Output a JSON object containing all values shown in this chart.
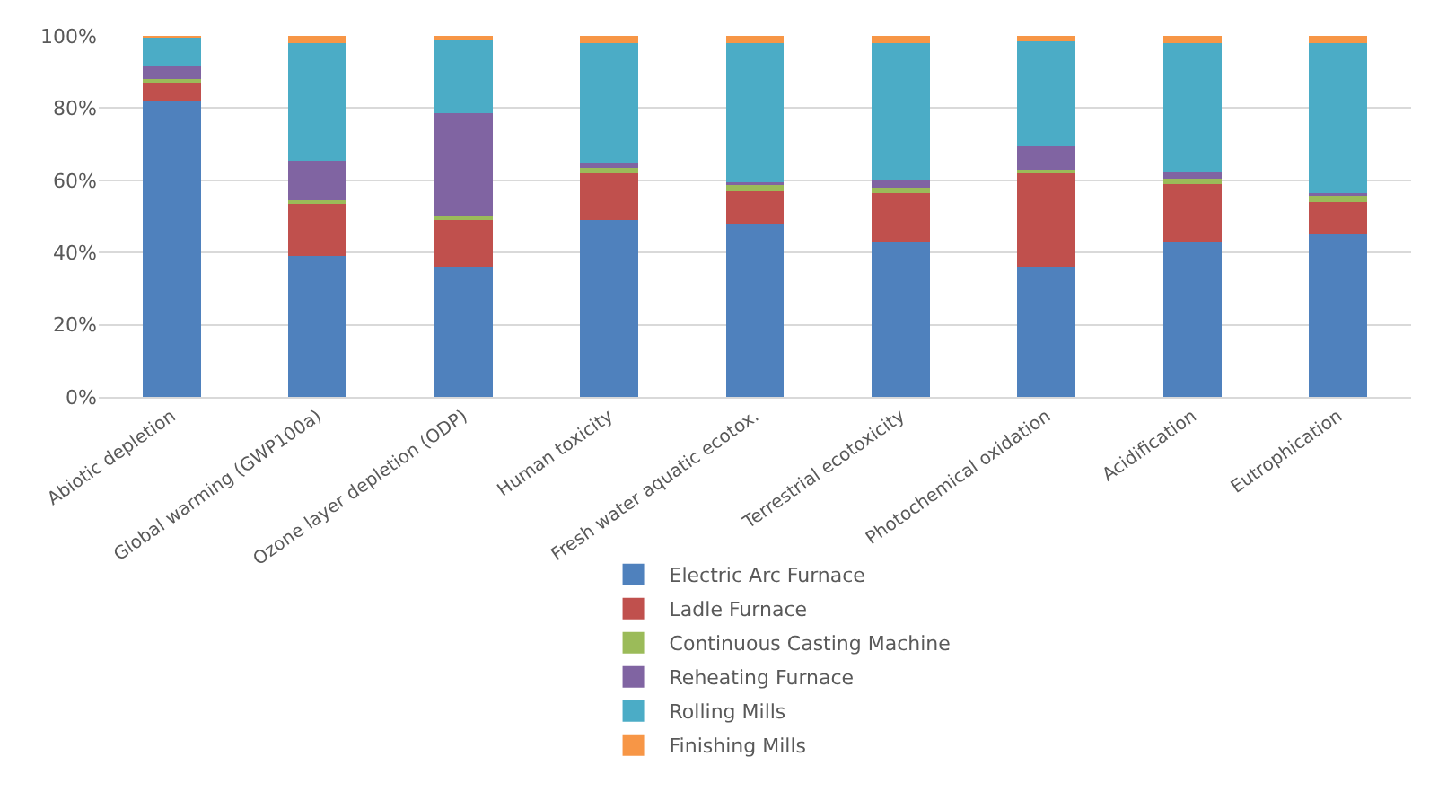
{
  "chart_data": {
    "type": "bar",
    "stacked": true,
    "categories": [
      "Abiotic depletion",
      "Global warming (GWP100a)",
      "Ozone layer depletion (ODP)",
      "Human toxicity",
      "Fresh water aquatic ecotox.",
      "Terrestrial ecotoxicity",
      "Photochemical oxidation",
      "Acidification",
      "Eutrophication"
    ],
    "series": [
      {
        "name": "Electric Arc Furnace",
        "color": "#4f81bd",
        "values": [
          82,
          39,
          36,
          49,
          48,
          43,
          36,
          43,
          45
        ]
      },
      {
        "name": "Ladle Furnace",
        "color": "#c0504d",
        "values": [
          5.5,
          14.5,
          13,
          13,
          9,
          13.5,
          26,
          16,
          9
        ]
      },
      {
        "name": "Continuous Casting Machine",
        "color": "#9bbb59",
        "values": [
          0.5,
          1,
          1,
          1.5,
          2,
          1.5,
          1,
          1.5,
          2
        ]
      },
      {
        "name": "Reheating Furnace",
        "color": "#8064a2",
        "values": [
          3.5,
          11,
          28.5,
          1.5,
          0.5,
          2,
          6.5,
          2,
          0.5
        ]
      },
      {
        "name": "Rolling Mills",
        "color": "#4bacc6",
        "values": [
          8,
          32.5,
          20.5,
          33,
          38.5,
          38,
          29,
          35.5,
          41.5
        ]
      },
      {
        "name": "Finishing Mills",
        "color": "#f79646",
        "values": [
          0.5,
          2,
          1,
          2,
          2,
          2,
          1.5,
          2,
          2
        ]
      }
    ],
    "ylim": [
      0,
      100
    ],
    "yticks": [
      {
        "value": 0,
        "label": "0%"
      },
      {
        "value": 20,
        "label": "20%"
      },
      {
        "value": 40,
        "label": "40%"
      },
      {
        "value": 60,
        "label": "60%"
      },
      {
        "value": 80,
        "label": "80%"
      },
      {
        "value": 100,
        "label": "100%"
      }
    ],
    "grid": "y",
    "legend": "bottom"
  }
}
